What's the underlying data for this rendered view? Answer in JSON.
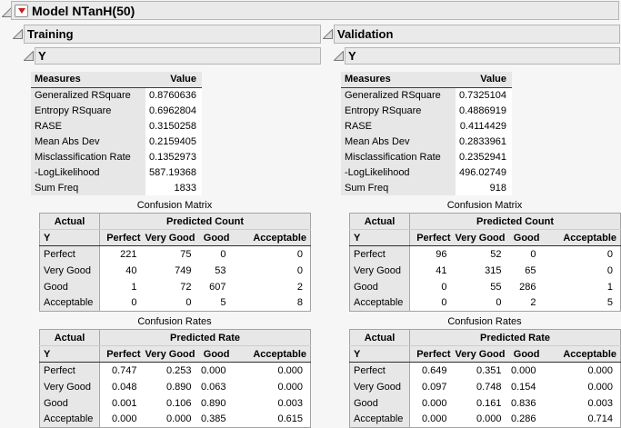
{
  "model": {
    "title": "Model NTanH(50)"
  },
  "icons": {
    "disclosure_open": "open-disclosure-triangle",
    "red_menu_button": "red-triangle-menu"
  },
  "colors": {
    "header_bar_bg": "#eaeaea",
    "table_header_bg": "#e7e7e7",
    "red_triangle": "#cf1d1d",
    "page_bg": "#f6f6f6"
  },
  "panels": [
    {
      "title": "Training",
      "y_title": "Y",
      "measures": {
        "headers": [
          "Measures",
          "Value"
        ],
        "rows": [
          [
            "Generalized RSquare",
            "0.8760636"
          ],
          [
            "Entropy RSquare",
            "0.6962804"
          ],
          [
            "RASE",
            "0.3150258"
          ],
          [
            "Mean Abs Dev",
            "0.2159405"
          ],
          [
            "Misclassification Rate",
            "0.1352973"
          ],
          [
            "-LogLikelihood",
            "587.19368"
          ],
          [
            "Sum Freq",
            "1833"
          ]
        ]
      },
      "confusion_matrix": {
        "title": "Confusion Matrix",
        "corner": "Actual",
        "span_header": "Predicted Count",
        "row_header": "Y",
        "columns": [
          "Perfect",
          "Very Good",
          "Good",
          "Acceptable"
        ],
        "rows": [
          {
            "label": "Perfect",
            "values": [
              "221",
              "75",
              "0",
              "0"
            ]
          },
          {
            "label": "Very Good",
            "values": [
              "40",
              "749",
              "53",
              "0"
            ]
          },
          {
            "label": "Good",
            "values": [
              "1",
              "72",
              "607",
              "2"
            ]
          },
          {
            "label": "Acceptable",
            "values": [
              "0",
              "0",
              "5",
              "8"
            ]
          }
        ]
      },
      "confusion_rates": {
        "title": "Confusion Rates",
        "corner": "Actual",
        "span_header": "Predicted Rate",
        "row_header": "Y",
        "columns": [
          "Perfect",
          "Very Good",
          "Good",
          "Acceptable"
        ],
        "rows": [
          {
            "label": "Perfect",
            "values": [
              "0.747",
              "0.253",
              "0.000",
              "0.000"
            ]
          },
          {
            "label": "Very Good",
            "values": [
              "0.048",
              "0.890",
              "0.063",
              "0.000"
            ]
          },
          {
            "label": "Good",
            "values": [
              "0.001",
              "0.106",
              "0.890",
              "0.003"
            ]
          },
          {
            "label": "Acceptable",
            "values": [
              "0.000",
              "0.000",
              "0.385",
              "0.615"
            ]
          }
        ]
      }
    },
    {
      "title": "Validation",
      "y_title": "Y",
      "measures": {
        "headers": [
          "Measures",
          "Value"
        ],
        "rows": [
          [
            "Generalized RSquare",
            "0.7325104"
          ],
          [
            "Entropy RSquare",
            "0.4886919"
          ],
          [
            "RASE",
            "0.4114429"
          ],
          [
            "Mean Abs Dev",
            "0.2833961"
          ],
          [
            "Misclassification Rate",
            "0.2352941"
          ],
          [
            "-LogLikelihood",
            "496.02749"
          ],
          [
            "Sum Freq",
            "918"
          ]
        ]
      },
      "confusion_matrix": {
        "title": "Confusion Matrix",
        "corner": "Actual",
        "span_header": "Predicted Count",
        "row_header": "Y",
        "columns": [
          "Perfect",
          "Very Good",
          "Good",
          "Acceptable"
        ],
        "rows": [
          {
            "label": "Perfect",
            "values": [
              "96",
              "52",
              "0",
              "0"
            ]
          },
          {
            "label": "Very Good",
            "values": [
              "41",
              "315",
              "65",
              "0"
            ]
          },
          {
            "label": "Good",
            "values": [
              "0",
              "55",
              "286",
              "1"
            ]
          },
          {
            "label": "Acceptable",
            "values": [
              "0",
              "0",
              "2",
              "5"
            ]
          }
        ]
      },
      "confusion_rates": {
        "title": "Confusion Rates",
        "corner": "Actual",
        "span_header": "Predicted Rate",
        "row_header": "Y",
        "columns": [
          "Perfect",
          "Very Good",
          "Good",
          "Acceptable"
        ],
        "rows": [
          {
            "label": "Perfect",
            "values": [
              "0.649",
              "0.351",
              "0.000",
              "0.000"
            ]
          },
          {
            "label": "Very Good",
            "values": [
              "0.097",
              "0.748",
              "0.154",
              "0.000"
            ]
          },
          {
            "label": "Good",
            "values": [
              "0.000",
              "0.161",
              "0.836",
              "0.003"
            ]
          },
          {
            "label": "Acceptable",
            "values": [
              "0.000",
              "0.000",
              "0.286",
              "0.714"
            ]
          }
        ]
      }
    }
  ]
}
